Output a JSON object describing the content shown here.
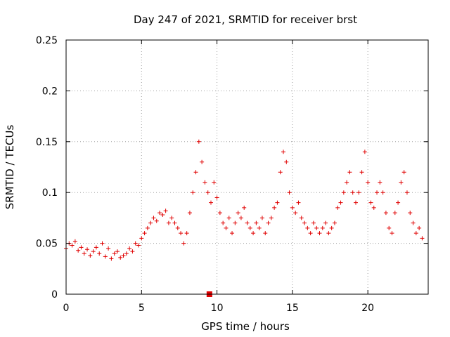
{
  "chart_data": {
    "type": "scatter",
    "title": "Day 247 of 2021, SRMTID for receiver brst",
    "xlabel": "GPS time / hours",
    "ylabel": "SRMTID / TECUs",
    "xlim": [
      0,
      24
    ],
    "ylim": [
      0,
      0.25
    ],
    "xticks": [
      0,
      5,
      10,
      15,
      20
    ],
    "xtick_labels": [
      "0",
      "5",
      "10",
      "15",
      "20"
    ],
    "yticks": [
      0,
      0.05,
      0.1,
      0.15,
      0.2,
      0.25
    ],
    "ytick_labels": [
      "0",
      "0.05",
      "0.1",
      "0.15",
      "0.2",
      "0.25"
    ],
    "grid": true,
    "marker": "+",
    "color": "#e00000",
    "marker_note": {
      "x": 9.5,
      "y": 0
    },
    "series": [
      {
        "name": "SRMTID",
        "x": [
          0.0,
          0.2,
          0.4,
          0.6,
          0.8,
          1.0,
          1.2,
          1.4,
          1.6,
          1.8,
          2.0,
          2.2,
          2.4,
          2.6,
          2.8,
          3.0,
          3.2,
          3.4,
          3.6,
          3.8,
          4.0,
          4.2,
          4.4,
          4.6,
          4.8,
          5.0,
          5.2,
          5.4,
          5.6,
          5.8,
          6.0,
          6.2,
          6.4,
          6.6,
          6.8,
          7.0,
          7.2,
          7.4,
          7.6,
          7.8,
          8.0,
          8.2,
          8.4,
          8.6,
          8.8,
          9.0,
          9.2,
          9.4,
          9.6,
          9.8,
          10.0,
          10.2,
          10.4,
          10.6,
          10.8,
          11.0,
          11.2,
          11.4,
          11.6,
          11.8,
          12.0,
          12.2,
          12.4,
          12.6,
          12.8,
          13.0,
          13.2,
          13.4,
          13.6,
          13.8,
          14.0,
          14.2,
          14.4,
          14.6,
          14.8,
          15.0,
          15.2,
          15.4,
          15.6,
          15.8,
          16.0,
          16.2,
          16.4,
          16.6,
          16.8,
          17.0,
          17.2,
          17.4,
          17.6,
          17.8,
          18.0,
          18.2,
          18.4,
          18.6,
          18.8,
          19.0,
          19.2,
          19.4,
          19.6,
          19.8,
          20.0,
          20.2,
          20.4,
          20.6,
          20.8,
          21.0,
          21.2,
          21.4,
          21.6,
          21.8,
          22.0,
          22.2,
          22.4,
          22.6,
          22.8,
          23.0,
          23.2,
          23.4,
          23.6
        ],
        "y": [
          0.045,
          0.05,
          0.048,
          0.052,
          0.043,
          0.046,
          0.04,
          0.044,
          0.038,
          0.042,
          0.046,
          0.04,
          0.05,
          0.037,
          0.045,
          0.035,
          0.04,
          0.042,
          0.036,
          0.038,
          0.04,
          0.045,
          0.042,
          0.05,
          0.048,
          0.055,
          0.06,
          0.065,
          0.07,
          0.075,
          0.072,
          0.08,
          0.078,
          0.082,
          0.07,
          0.075,
          0.07,
          0.065,
          0.06,
          0.05,
          0.06,
          0.08,
          0.1,
          0.12,
          0.15,
          0.13,
          0.11,
          0.1,
          0.09,
          0.11,
          0.095,
          0.08,
          0.07,
          0.065,
          0.075,
          0.06,
          0.07,
          0.08,
          0.075,
          0.085,
          0.07,
          0.065,
          0.06,
          0.07,
          0.065,
          0.075,
          0.06,
          0.07,
          0.075,
          0.085,
          0.09,
          0.12,
          0.14,
          0.13,
          0.1,
          0.085,
          0.08,
          0.09,
          0.075,
          0.07,
          0.065,
          0.06,
          0.07,
          0.065,
          0.06,
          0.065,
          0.07,
          0.06,
          0.065,
          0.07,
          0.085,
          0.09,
          0.1,
          0.11,
          0.12,
          0.1,
          0.09,
          0.1,
          0.12,
          0.14,
          0.11,
          0.09,
          0.085,
          0.1,
          0.11,
          0.1,
          0.08,
          0.065,
          0.06,
          0.08,
          0.09,
          0.11,
          0.12,
          0.1,
          0.08,
          0.07,
          0.06,
          0.065,
          0.055
        ]
      }
    ]
  }
}
